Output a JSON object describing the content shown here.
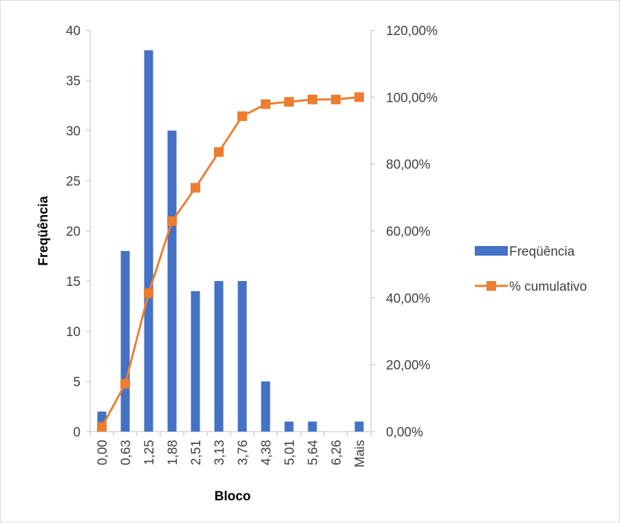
{
  "chart_data": {
    "type": "bar",
    "title": "",
    "xlabel": "Bloco",
    "ylabel": "Freqüência",
    "categories": [
      "0,00",
      "0,63",
      "1,25",
      "1,88",
      "2,51",
      "3,13",
      "3,76",
      "4,38",
      "5,01",
      "5,64",
      "6,26",
      "Mais"
    ],
    "series": [
      {
        "name": "Freqüência",
        "type": "bar",
        "axis": "left",
        "color": "#4472c4",
        "values": [
          2,
          18,
          38,
          30,
          14,
          15,
          15,
          5,
          1,
          1,
          0,
          1
        ]
      },
      {
        "name": "% cumulativo",
        "type": "line",
        "axis": "right",
        "color": "#ed7d31",
        "marker": "square",
        "values": [
          1.4,
          14.3,
          41.4,
          62.9,
          72.9,
          83.6,
          94.3,
          97.9,
          98.6,
          99.3,
          99.3,
          100.0
        ]
      }
    ],
    "y_left": {
      "range": [
        0,
        40
      ],
      "ticks": [
        "0",
        "5",
        "10",
        "15",
        "20",
        "25",
        "30",
        "35",
        "40"
      ]
    },
    "y_right": {
      "range": [
        0,
        120
      ],
      "ticks": [
        "0,00%",
        "20,00%",
        "40,00%",
        "60,00%",
        "80,00%",
        "100,00%",
        "120,00%"
      ]
    },
    "grid": false,
    "legend_position": "right"
  }
}
